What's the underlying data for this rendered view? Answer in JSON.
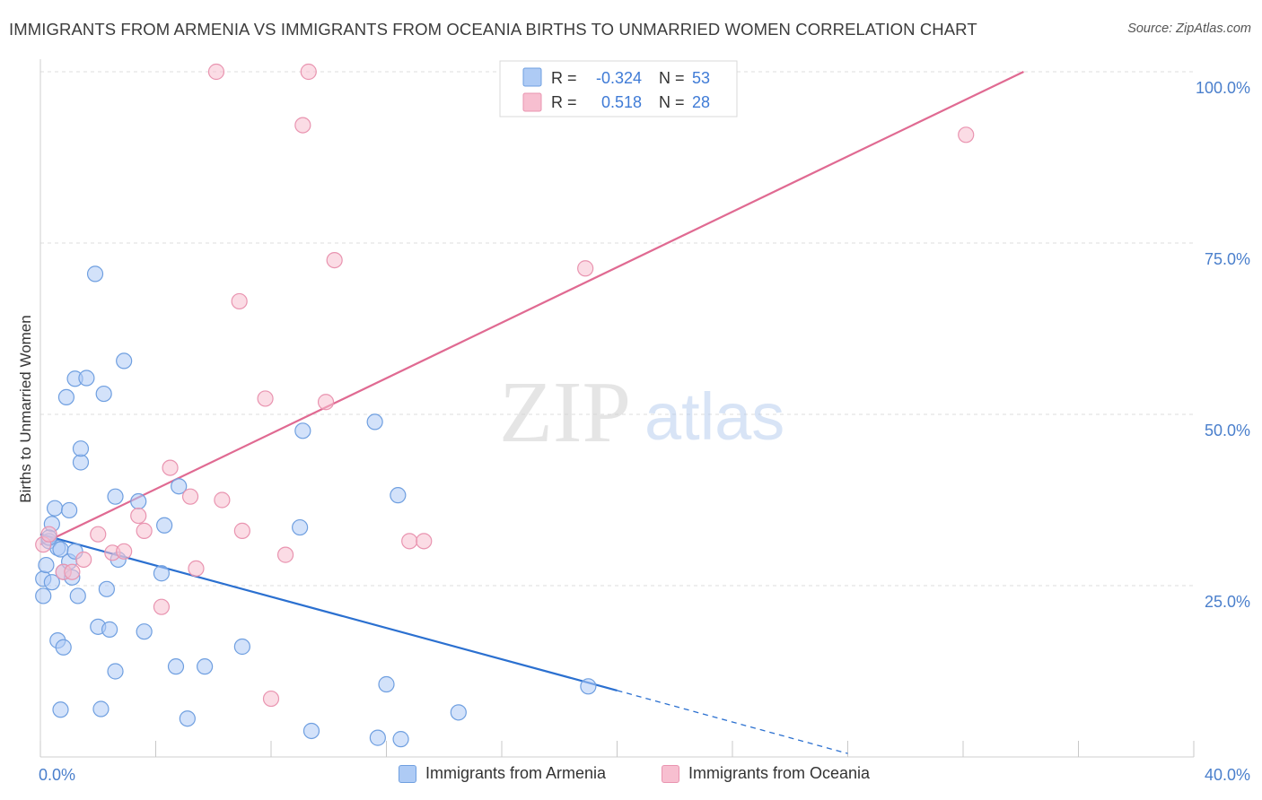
{
  "title": "IMMIGRANTS FROM ARMENIA VS IMMIGRANTS FROM OCEANIA BIRTHS TO UNMARRIED WOMEN CORRELATION CHART",
  "source": "Source: ZipAtlas.com",
  "watermark": {
    "zip": "ZIP",
    "atlas": "atlas"
  },
  "legend_box": {
    "rows": [
      {
        "r_label": "R =",
        "r_value": "-0.324",
        "n_label": "N =",
        "n_value": "53"
      },
      {
        "r_label": "R =",
        "r_value": "0.518",
        "n_label": "N =",
        "n_value": "28"
      }
    ]
  },
  "colors": {
    "armenia_fill": "#aecbf5",
    "armenia_stroke": "#6f9fe0",
    "armenia_line": "#2b70d0",
    "oceania_fill": "#f7bfd0",
    "oceania_stroke": "#e994b0",
    "oceania_line": "#e06a92",
    "axis_label": "#4a7fcc",
    "grid": "#dedede"
  },
  "chart_data": {
    "type": "scatter",
    "title": "IMMIGRANTS FROM ARMENIA VS IMMIGRANTS FROM OCEANIA BIRTHS TO UNMARRIED WOMEN CORRELATION CHART",
    "xlabel": "",
    "ylabel": "Births to Unmarried Women",
    "xlim": [
      0,
      40
    ],
    "ylim": [
      0,
      100
    ],
    "x_tick_labels": [
      "0.0%",
      "40.0%"
    ],
    "y_tick_labels": [
      {
        "value": 25,
        "label": "25.0%"
      },
      {
        "value": 50,
        "label": "50.0%"
      },
      {
        "value": 75,
        "label": "75.0%"
      },
      {
        "value": 100,
        "label": "100.0%"
      }
    ],
    "legend_position": "bottom",
    "series": [
      {
        "name": "Immigrants from Armenia",
        "r": -0.324,
        "n": 53,
        "trend": {
          "x0": 0.0,
          "y0": 32.5,
          "x1": 20.0,
          "y1": 9.7,
          "dash_x1": 28.0,
          "dash_y1": 0.5
        },
        "points": [
          [
            0.1,
            26.0
          ],
          [
            0.1,
            23.5
          ],
          [
            0.2,
            28.0
          ],
          [
            0.3,
            31.5
          ],
          [
            0.4,
            34.0
          ],
          [
            0.4,
            25.5
          ],
          [
            0.5,
            36.3
          ],
          [
            0.6,
            17.0
          ],
          [
            0.6,
            30.5
          ],
          [
            0.7,
            30.3
          ],
          [
            0.7,
            6.9
          ],
          [
            0.8,
            27.0
          ],
          [
            0.8,
            16.0
          ],
          [
            0.9,
            52.5
          ],
          [
            1.0,
            28.5
          ],
          [
            1.0,
            36.0
          ],
          [
            1.1,
            26.2
          ],
          [
            1.2,
            30.0
          ],
          [
            1.2,
            55.2
          ],
          [
            1.3,
            23.5
          ],
          [
            1.4,
            43.0
          ],
          [
            1.4,
            45.0
          ],
          [
            1.6,
            55.3
          ],
          [
            1.9,
            70.5
          ],
          [
            2.0,
            19.0
          ],
          [
            2.1,
            7.0
          ],
          [
            2.2,
            53.0
          ],
          [
            2.3,
            24.5
          ],
          [
            2.4,
            18.6
          ],
          [
            2.6,
            12.5
          ],
          [
            2.6,
            38.0
          ],
          [
            2.7,
            28.8
          ],
          [
            2.9,
            57.8
          ],
          [
            3.4,
            37.3
          ],
          [
            3.6,
            18.3
          ],
          [
            4.2,
            26.8
          ],
          [
            4.3,
            33.8
          ],
          [
            4.7,
            13.2
          ],
          [
            4.8,
            39.5
          ],
          [
            5.1,
            5.6
          ],
          [
            5.7,
            13.2
          ],
          [
            7.0,
            16.1
          ],
          [
            9.0,
            33.5
          ],
          [
            9.1,
            47.6
          ],
          [
            9.4,
            3.8
          ],
          [
            11.6,
            48.9
          ],
          [
            11.7,
            2.8
          ],
          [
            12.0,
            10.6
          ],
          [
            12.5,
            2.6
          ],
          [
            12.4,
            38.2
          ],
          [
            14.5,
            6.5
          ],
          [
            19.0,
            10.3
          ],
          [
            0.3,
            32.0
          ]
        ]
      },
      {
        "name": "Immigrants from Oceania",
        "r": 0.518,
        "n": 28,
        "trend": {
          "x0": 0.0,
          "y0": 31.0,
          "x1": 34.1,
          "y1": 100.0
        },
        "points": [
          [
            0.1,
            31.0
          ],
          [
            0.3,
            32.5
          ],
          [
            0.8,
            27.0
          ],
          [
            1.1,
            27.0
          ],
          [
            1.5,
            28.8
          ],
          [
            2.0,
            32.5
          ],
          [
            2.5,
            29.8
          ],
          [
            2.9,
            30.0
          ],
          [
            3.4,
            35.2
          ],
          [
            3.6,
            33.0
          ],
          [
            4.2,
            21.9
          ],
          [
            4.5,
            42.2
          ],
          [
            5.2,
            38.0
          ],
          [
            5.4,
            27.5
          ],
          [
            6.1,
            100.0
          ],
          [
            6.3,
            37.5
          ],
          [
            6.9,
            66.5
          ],
          [
            7.0,
            33.0
          ],
          [
            7.8,
            52.3
          ],
          [
            8.0,
            8.5
          ],
          [
            8.5,
            29.5
          ],
          [
            9.3,
            100.0
          ],
          [
            9.1,
            92.2
          ],
          [
            9.9,
            51.8
          ],
          [
            10.2,
            72.5
          ],
          [
            12.8,
            31.5
          ],
          [
            13.3,
            31.5
          ],
          [
            18.9,
            71.3
          ],
          [
            32.1,
            90.8
          ]
        ]
      }
    ]
  }
}
